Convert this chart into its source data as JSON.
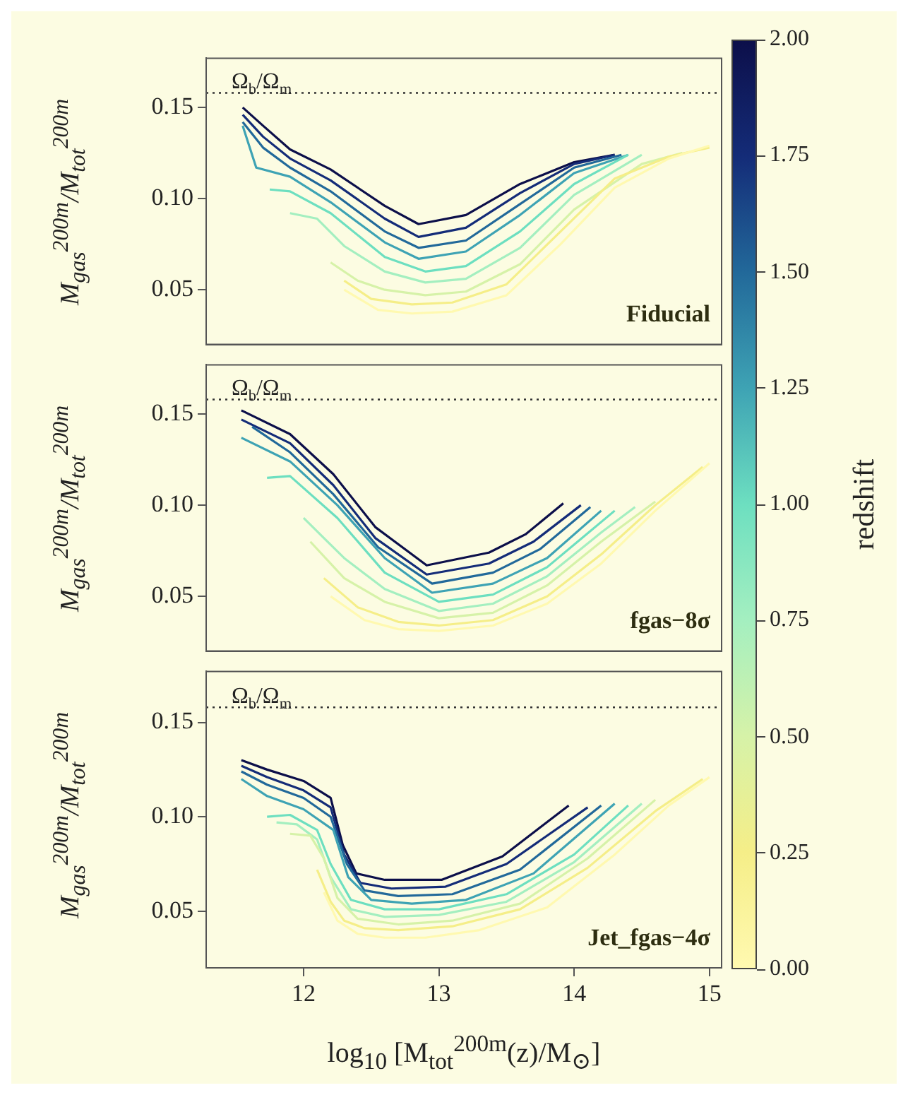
{
  "chart_data": [
    {
      "type": "line",
      "ylabel": "M$_{gas}$$^{200m}$/M$_{tot}$$^{200m}$",
      "annotations": [
        "Fiducial"
      ],
      "grid": false,
      "marker": "none",
      "line_style": "solid",
      "tick_labels": "y",
      "xlim": [
        11.28,
        15.09
      ],
      "ylim": [
        0.02,
        0.177
      ],
      "yticks": [
        {
          "value": 0.05,
          "label": "0.05"
        },
        {
          "value": 0.1,
          "label": "0.10"
        },
        {
          "value": 0.15,
          "label": "0.15"
        }
      ],
      "ref_lines": [
        {
          "axis": "y",
          "value": 0.158,
          "label": "Ω$_{b}$/Ω$_{m}$",
          "line_style": "dotted",
          "color": "#333333"
        }
      ],
      "clabel": "redshift",
      "clim": [
        0,
        2
      ],
      "cticks": [
        {
          "value": 0,
          "label": "0.00"
        },
        {
          "value": 0.25,
          "label": "0.25"
        },
        {
          "value": 0.5,
          "label": "0.50"
        },
        {
          "value": 0.75,
          "label": "0.75"
        },
        {
          "value": 1,
          "label": "1.00"
        },
        {
          "value": 1.25,
          "label": "1.25"
        },
        {
          "value": 1.5,
          "label": "1.50"
        },
        {
          "value": 1.75,
          "label": "1.75"
        },
        {
          "value": 2,
          "label": "2.00"
        }
      ],
      "series": [
        {
          "color": "#fff9b0",
          "x": [
            12.3,
            12.55,
            12.8,
            13.1,
            13.5,
            13.9,
            14.3,
            14.7,
            15.0
          ],
          "values": [
            0.05,
            0.039,
            0.037,
            0.038,
            0.047,
            0.075,
            0.106,
            0.122,
            0.129
          ]
        },
        {
          "color": "#f5ee88",
          "x": [
            12.3,
            12.5,
            12.8,
            13.1,
            13.5,
            13.9,
            14.3,
            14.7,
            15.0
          ],
          "values": [
            0.055,
            0.045,
            0.042,
            0.043,
            0.053,
            0.082,
            0.111,
            0.123,
            0.128
          ]
        },
        {
          "color": "#d6f2a8",
          "x": [
            12.2,
            12.4,
            12.6,
            12.9,
            13.2,
            13.6,
            14.0,
            14.5,
            14.8
          ],
          "values": [
            0.065,
            0.055,
            0.05,
            0.047,
            0.049,
            0.064,
            0.094,
            0.119,
            0.125
          ]
        },
        {
          "color": "#a4efc0",
          "x": [
            11.9,
            12.1,
            12.3,
            12.6,
            12.9,
            13.2,
            13.6,
            14.0,
            14.5
          ],
          "values": [
            0.092,
            0.089,
            0.074,
            0.06,
            0.054,
            0.056,
            0.073,
            0.102,
            0.124
          ]
        },
        {
          "color": "#6ddfc0",
          "x": [
            11.75,
            11.9,
            12.2,
            12.6,
            12.9,
            13.2,
            13.6,
            14.0,
            14.4
          ],
          "values": [
            0.105,
            0.104,
            0.092,
            0.068,
            0.06,
            0.063,
            0.082,
            0.108,
            0.124
          ]
        },
        {
          "color": "#3ea3b4",
          "x": [
            11.55,
            11.65,
            11.9,
            12.2,
            12.6,
            12.85,
            13.2,
            13.6,
            14.0,
            14.4
          ],
          "values": [
            0.14,
            0.117,
            0.112,
            0.098,
            0.076,
            0.067,
            0.071,
            0.091,
            0.114,
            0.124
          ]
        },
        {
          "color": "#22699a",
          "x": [
            11.55,
            11.7,
            11.9,
            12.2,
            12.6,
            12.85,
            13.2,
            13.6,
            14.0,
            14.35
          ],
          "values": [
            0.142,
            0.128,
            0.117,
            0.104,
            0.082,
            0.073,
            0.077,
            0.097,
            0.117,
            0.124
          ]
        },
        {
          "color": "#142c78",
          "x": [
            11.55,
            11.7,
            11.9,
            12.2,
            12.6,
            12.85,
            13.2,
            13.6,
            14.0,
            14.3
          ],
          "values": [
            0.146,
            0.134,
            0.122,
            0.11,
            0.089,
            0.079,
            0.084,
            0.103,
            0.119,
            0.124
          ]
        },
        {
          "color": "#0c0f4a",
          "x": [
            11.55,
            11.7,
            11.9,
            12.2,
            12.6,
            12.85,
            13.2,
            13.6,
            14.0,
            14.3
          ],
          "values": [
            0.15,
            0.14,
            0.127,
            0.116,
            0.096,
            0.086,
            0.091,
            0.108,
            0.12,
            0.124
          ]
        }
      ]
    },
    {
      "type": "line",
      "ylabel": "M$_{gas}$$^{200m}$/M$_{tot}$$^{200m}$",
      "annotations": [
        "fgas−8σ"
      ],
      "grid": false,
      "marker": "none",
      "line_style": "solid",
      "tick_labels": "y",
      "xlim": [
        11.28,
        15.09
      ],
      "ylim": [
        0.02,
        0.177
      ],
      "yticks": [
        {
          "value": 0.05,
          "label": "0.05"
        },
        {
          "value": 0.1,
          "label": "0.10"
        },
        {
          "value": 0.15,
          "label": "0.15"
        }
      ],
      "ref_lines": [
        {
          "axis": "y",
          "value": 0.158,
          "label": "Ω$_{b}$/Ω$_{m}$",
          "line_style": "dotted",
          "color": "#333333"
        }
      ],
      "series": [
        {
          "color": "#fff9b0",
          "x": [
            12.2,
            12.45,
            12.7,
            13.0,
            13.4,
            13.8,
            14.2,
            14.6,
            15.0
          ],
          "values": [
            0.05,
            0.037,
            0.032,
            0.031,
            0.034,
            0.046,
            0.068,
            0.097,
            0.123
          ]
        },
        {
          "color": "#f5ee88",
          "x": [
            12.15,
            12.4,
            12.7,
            13.0,
            13.4,
            13.8,
            14.2,
            14.6,
            14.95
          ],
          "values": [
            0.06,
            0.044,
            0.036,
            0.034,
            0.037,
            0.05,
            0.073,
            0.1,
            0.121
          ]
        },
        {
          "color": "#d6f2a8",
          "x": [
            12.05,
            12.3,
            12.6,
            13.0,
            13.4,
            13.8,
            14.2,
            14.6
          ],
          "values": [
            0.08,
            0.06,
            0.047,
            0.038,
            0.041,
            0.056,
            0.08,
            0.102
          ]
        },
        {
          "color": "#a4efc0",
          "x": [
            12.0,
            12.3,
            12.6,
            13.0,
            13.4,
            13.8,
            14.2,
            14.45
          ],
          "values": [
            0.093,
            0.071,
            0.054,
            0.042,
            0.046,
            0.061,
            0.085,
            0.099
          ]
        },
        {
          "color": "#6ddfc0",
          "x": [
            11.73,
            11.9,
            12.25,
            12.6,
            13.0,
            13.4,
            13.8,
            14.3
          ],
          "values": [
            0.115,
            0.116,
            0.093,
            0.063,
            0.047,
            0.051,
            0.066,
            0.097
          ]
        },
        {
          "color": "#3ea3b4",
          "x": [
            11.54,
            11.9,
            12.25,
            12.6,
            12.95,
            13.4,
            13.8,
            14.2
          ],
          "values": [
            0.137,
            0.124,
            0.1,
            0.071,
            0.052,
            0.057,
            0.071,
            0.097
          ]
        },
        {
          "color": "#22699a",
          "x": [
            11.62,
            11.9,
            12.22,
            12.55,
            12.95,
            13.4,
            13.75,
            14.12
          ],
          "values": [
            0.143,
            0.129,
            0.106,
            0.077,
            0.057,
            0.063,
            0.076,
            0.099
          ]
        },
        {
          "color": "#142c78",
          "x": [
            11.54,
            11.9,
            12.22,
            12.53,
            12.91,
            13.37,
            13.7,
            14.05
          ],
          "values": [
            0.147,
            0.134,
            0.111,
            0.082,
            0.062,
            0.068,
            0.08,
            0.1
          ]
        },
        {
          "color": "#0c0f4a",
          "x": [
            11.54,
            11.9,
            12.22,
            12.53,
            12.91,
            13.37,
            13.64,
            13.92
          ],
          "values": [
            0.152,
            0.139,
            0.117,
            0.088,
            0.067,
            0.074,
            0.084,
            0.101
          ]
        }
      ]
    },
    {
      "type": "line",
      "ylabel": "M$_{gas}$$^{200m}$/M$_{tot}$$^{200m}$",
      "xlabel": "log$_{10}$ [M$_{tot}$$^{200m}$(z)/M$_{⊙}$]",
      "annotations": [
        "Jet_fgas−4σ"
      ],
      "grid": false,
      "marker": "none",
      "line_style": "solid",
      "xlim": [
        11.28,
        15.09
      ],
      "xticks": [
        12,
        13,
        14,
        15
      ],
      "ylim": [
        0.02,
        0.177
      ],
      "yticks": [
        {
          "value": 0.05,
          "label": "0.05"
        },
        {
          "value": 0.1,
          "label": "0.10"
        },
        {
          "value": 0.15,
          "label": "0.15"
        }
      ],
      "ref_lines": [
        {
          "axis": "y",
          "value": 0.158,
          "label": "Ω$_{b}$/Ω$_{m}$",
          "line_style": "dotted",
          "color": "#333333"
        }
      ],
      "series": [
        {
          "color": "#fff9b0",
          "x": [
            12.15,
            12.25,
            12.4,
            12.6,
            12.9,
            13.3,
            13.8,
            14.3,
            14.7,
            15.0
          ],
          "values": [
            0.06,
            0.045,
            0.038,
            0.036,
            0.036,
            0.04,
            0.052,
            0.08,
            0.106,
            0.121
          ]
        },
        {
          "color": "#f5ee88",
          "x": [
            12.1,
            12.2,
            12.3,
            12.45,
            12.7,
            13.1,
            13.6,
            14.1,
            14.6,
            14.95
          ],
          "values": [
            0.072,
            0.055,
            0.045,
            0.041,
            0.04,
            0.042,
            0.051,
            0.073,
            0.103,
            0.12
          ]
        },
        {
          "color": "#d6f2a8",
          "x": [
            11.9,
            12.05,
            12.15,
            12.25,
            12.4,
            12.7,
            13.1,
            13.6,
            14.1,
            14.6
          ],
          "values": [
            0.091,
            0.09,
            0.078,
            0.057,
            0.046,
            0.043,
            0.045,
            0.054,
            0.078,
            0.109
          ]
        },
        {
          "color": "#a4efc0",
          "x": [
            11.8,
            11.95,
            12.1,
            12.2,
            12.35,
            12.6,
            13.0,
            13.5,
            14.0,
            14.5
          ],
          "values": [
            0.097,
            0.096,
            0.088,
            0.068,
            0.051,
            0.047,
            0.048,
            0.055,
            0.076,
            0.107
          ]
        },
        {
          "color": "#6ddfc0",
          "x": [
            11.73,
            11.9,
            12.1,
            12.2,
            12.35,
            12.6,
            13.0,
            13.5,
            14.0,
            14.4
          ],
          "values": [
            0.1,
            0.101,
            0.093,
            0.075,
            0.056,
            0.051,
            0.051,
            0.059,
            0.08,
            0.106
          ]
        },
        {
          "color": "#3ea3b4",
          "x": [
            11.54,
            11.73,
            12.0,
            12.22,
            12.33,
            12.5,
            12.8,
            13.2,
            13.7,
            14.3
          ],
          "values": [
            0.12,
            0.111,
            0.104,
            0.093,
            0.068,
            0.056,
            0.054,
            0.056,
            0.07,
            0.107
          ]
        },
        {
          "color": "#22699a",
          "x": [
            11.54,
            11.73,
            12.0,
            12.2,
            12.32,
            12.45,
            12.7,
            13.1,
            13.6,
            14.2
          ],
          "values": [
            0.124,
            0.117,
            0.11,
            0.1,
            0.075,
            0.061,
            0.058,
            0.059,
            0.072,
            0.106
          ]
        },
        {
          "color": "#142c78",
          "x": [
            11.54,
            11.73,
            12.0,
            12.2,
            12.3,
            12.42,
            12.65,
            13.05,
            13.5,
            14.1
          ],
          "values": [
            0.127,
            0.121,
            0.114,
            0.105,
            0.08,
            0.065,
            0.062,
            0.063,
            0.075,
            0.105
          ]
        },
        {
          "color": "#0c0f4a",
          "x": [
            11.54,
            11.73,
            12.0,
            12.2,
            12.29,
            12.39,
            12.6,
            13.02,
            13.47,
            13.96
          ],
          "values": [
            0.13,
            0.125,
            0.119,
            0.11,
            0.085,
            0.07,
            0.0666,
            0.0666,
            0.079,
            0.106
          ]
        }
      ]
    }
  ]
}
